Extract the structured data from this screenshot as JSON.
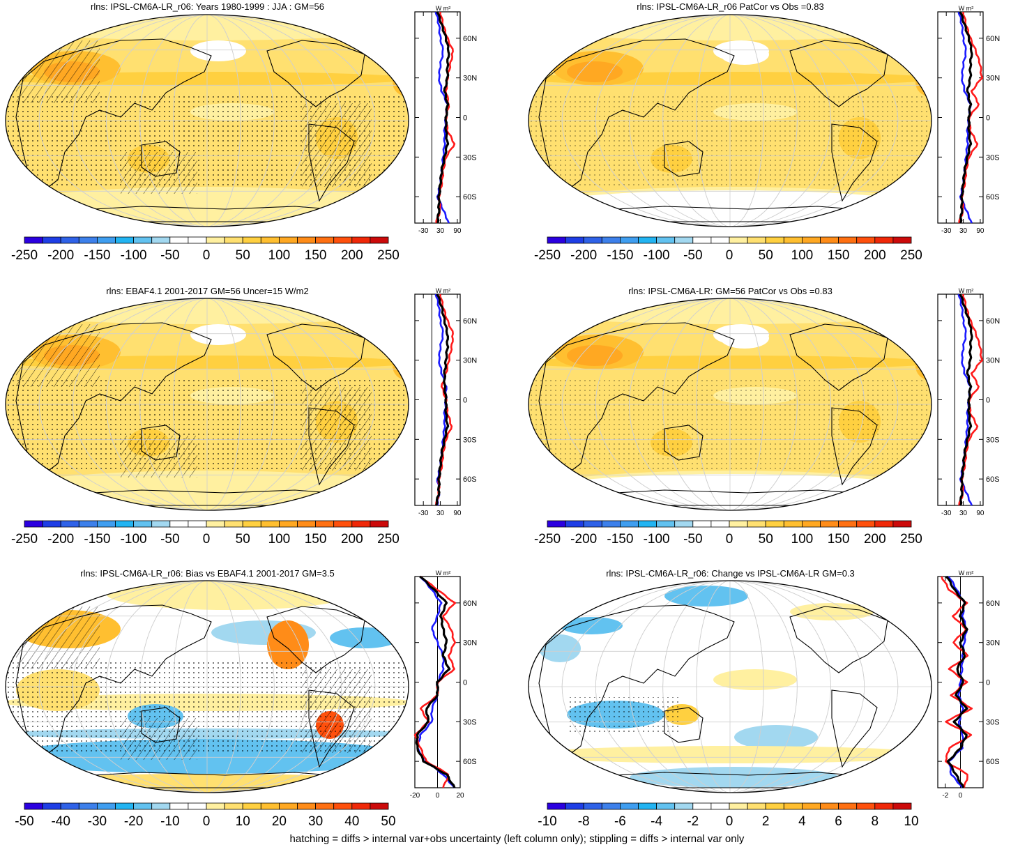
{
  "colors": {
    "series_blue": "#1a1aff",
    "series_red": "#ff1a1a",
    "series_black": "#000000",
    "map_outline": "#000000",
    "grid": "#cfcfcf"
  },
  "colorbars": {
    "rad": {
      "labels": [
        "-250",
        "-200",
        "-150",
        "-100",
        "-50",
        "0",
        "50",
        "100",
        "150",
        "200",
        "250"
      ],
      "colors": [
        "#2b00e0",
        "#1f3ee6",
        "#2f62e8",
        "#3d80eb",
        "#3f9ef0",
        "#22b4f2",
        "#62c2f0",
        "#a2d8f0",
        "#ffffff",
        "#ffffff",
        "#fff0a0",
        "#ffe070",
        "#ffd040",
        "#ffbf30",
        "#ffa822",
        "#ff8c18",
        "#ff7012",
        "#ff500c",
        "#f02808",
        "#cc0a0a"
      ]
    },
    "bias": {
      "labels": [
        "-50",
        "-40",
        "-30",
        "-20",
        "-10",
        "0",
        "10",
        "20",
        "30",
        "40",
        "50"
      ],
      "colors": [
        "#2b00e0",
        "#1f3ee6",
        "#2f62e8",
        "#3d80eb",
        "#3f9ef0",
        "#22b4f2",
        "#62c2f0",
        "#a2d8f0",
        "#ffffff",
        "#ffffff",
        "#fff0a0",
        "#ffe070",
        "#ffd040",
        "#ffbf30",
        "#ffa822",
        "#ff8c18",
        "#ff7012",
        "#ff500c",
        "#f02808",
        "#cc0a0a"
      ]
    },
    "change": {
      "labels": [
        "-10",
        "-8",
        "-6",
        "-4",
        "-2",
        "0",
        "2",
        "4",
        "6",
        "8",
        "10"
      ],
      "colors": [
        "#2b00e0",
        "#1f3ee6",
        "#2f62e8",
        "#3d80eb",
        "#3f9ef0",
        "#22b4f2",
        "#62c2f0",
        "#a2d8f0",
        "#ffffff",
        "#ffffff",
        "#fff0a0",
        "#ffe070",
        "#ffd040",
        "#ffbf30",
        "#ffa822",
        "#ff8c18",
        "#ff7012",
        "#ff500c",
        "#f02808",
        "#cc0a0a"
      ]
    }
  },
  "chart_data": [
    {
      "type": "heatmap",
      "title": "rlns: IPSL-CM6A-LR_r06: Years 1980-1999 : JJA : GM=56",
      "colorbar_ticks": [
        -250,
        -200,
        -150,
        -100,
        -50,
        0,
        50,
        100,
        150,
        200,
        250
      ],
      "zonal_mean": {
        "unit": "W m²",
        "xticks": [
          -30,
          30,
          90
        ],
        "xlim": [
          -60,
          100
        ],
        "yticks": [
          "60N",
          "30N",
          "0",
          "30S",
          "60S"
        ],
        "lat": [
          80,
          70,
          60,
          50,
          40,
          30,
          20,
          10,
          0,
          -10,
          -20,
          -30,
          -40,
          -50,
          -60,
          -70,
          -80
        ],
        "series": [
          {
            "color": "blue",
            "values": [
              15,
              25,
              30,
              40,
              30,
              25,
              35,
              55,
              50,
              45,
              45,
              40,
              35,
              30,
              20,
              40,
              60
            ]
          },
          {
            "color": "red",
            "values": [
              30,
              40,
              55,
              75,
              65,
              55,
              50,
              60,
              50,
              55,
              80,
              50,
              40,
              35,
              25,
              30,
              15
            ]
          },
          {
            "color": "black",
            "values": [
              20,
              35,
              50,
              60,
              55,
              55,
              45,
              55,
              50,
              50,
              55,
              45,
              35,
              30,
              25,
              25,
              20
            ]
          }
        ]
      }
    },
    {
      "type": "heatmap",
      "title": "rlns: IPSL-CM6A-LR_r06 PatCor vs Obs =0.83",
      "colorbar_ticks": [
        -250,
        -200,
        -150,
        -100,
        -50,
        0,
        50,
        100,
        150,
        200,
        250
      ],
      "zonal_mean": {
        "unit": "W m²",
        "xticks": [
          -30,
          30,
          90
        ],
        "xlim": [
          -60,
          100
        ],
        "yticks": [
          "60N",
          "30N",
          "0",
          "30S",
          "60S"
        ],
        "lat": [
          80,
          70,
          60,
          50,
          40,
          30,
          20,
          10,
          0,
          -10,
          -20,
          -30,
          -40,
          -50,
          -60,
          -70,
          -80
        ],
        "series": [
          {
            "color": "blue",
            "values": [
              15,
              25,
              30,
              40,
              30,
              25,
              35,
              55,
              50,
              45,
              45,
              40,
              35,
              30,
              20,
              40,
              60
            ]
          },
          {
            "color": "red",
            "values": [
              30,
              40,
              55,
              75,
              90,
              95,
              60,
              85,
              50,
              55,
              80,
              50,
              40,
              35,
              25,
              30,
              15
            ]
          },
          {
            "color": "black",
            "values": [
              20,
              35,
              50,
              60,
              55,
              55,
              45,
              55,
              50,
              50,
              55,
              45,
              35,
              30,
              25,
              25,
              20
            ]
          }
        ]
      }
    },
    {
      "type": "heatmap",
      "title": "rlns: EBAF4.1 2001-2017 GM=56 Uncer=15 W/m2",
      "colorbar_ticks": [
        -250,
        -200,
        -150,
        -100,
        -50,
        0,
        50,
        100,
        150,
        200,
        250
      ],
      "zonal_mean": {
        "unit": "W m²",
        "xticks": [
          -30,
          30,
          90
        ],
        "xlim": [
          -60,
          100
        ],
        "yticks": [
          "60N",
          "30N",
          "0",
          "30S",
          "60S"
        ],
        "lat": [
          80,
          70,
          60,
          50,
          40,
          30,
          20,
          10,
          0,
          -10,
          -20,
          -30,
          -40,
          -50,
          -60,
          -70,
          -80
        ],
        "series": [
          {
            "color": "blue",
            "values": [
              15,
              25,
              30,
              40,
              30,
              25,
              35,
              50,
              50,
              45,
              45,
              40,
              35,
              30,
              20,
              25,
              20
            ]
          },
          {
            "color": "red",
            "values": [
              30,
              40,
              55,
              75,
              70,
              60,
              50,
              35,
              50,
              55,
              70,
              50,
              40,
              35,
              25,
              25,
              15
            ]
          },
          {
            "color": "black",
            "values": [
              20,
              35,
              45,
              55,
              55,
              50,
              45,
              45,
              50,
              50,
              55,
              45,
              35,
              30,
              25,
              25,
              15
            ]
          }
        ]
      }
    },
    {
      "type": "heatmap",
      "title": "rlns: IPSL-CM6A-LR: GM=56 PatCor vs Obs =0.83",
      "colorbar_ticks": [
        -250,
        -200,
        -150,
        -100,
        -50,
        0,
        50,
        100,
        150,
        200,
        250
      ],
      "zonal_mean": {
        "unit": "W m²",
        "xticks": [
          -30,
          30,
          90
        ],
        "xlim": [
          -60,
          100
        ],
        "yticks": [
          "60N",
          "30N",
          "0",
          "30S",
          "60S"
        ],
        "lat": [
          80,
          70,
          60,
          50,
          40,
          30,
          20,
          10,
          0,
          -10,
          -20,
          -30,
          -40,
          -50,
          -60,
          -70,
          -80
        ],
        "series": [
          {
            "color": "blue",
            "values": [
              15,
              25,
              30,
              40,
              30,
              25,
              35,
              55,
              50,
              45,
              45,
              40,
              35,
              30,
              20,
              40,
              60
            ]
          },
          {
            "color": "red",
            "values": [
              30,
              40,
              55,
              75,
              90,
              95,
              60,
              85,
              50,
              55,
              80,
              50,
              40,
              35,
              25,
              30,
              15
            ]
          },
          {
            "color": "black",
            "values": [
              20,
              35,
              50,
              60,
              55,
              55,
              45,
              55,
              50,
              50,
              55,
              45,
              35,
              30,
              25,
              25,
              20
            ]
          }
        ]
      }
    },
    {
      "type": "heatmap",
      "title": "rlns: IPSL-CM6A-LR_r06: Bias vs EBAF4.1 2001-2017 GM=3.5",
      "colorbar_ticks": [
        -50,
        -40,
        -30,
        -20,
        -10,
        0,
        10,
        20,
        30,
        40,
        50
      ],
      "zonal_mean": {
        "unit": "W m²",
        "xticks": [
          -20,
          0,
          20
        ],
        "xlim": [
          -20,
          20
        ],
        "yticks": [
          "60N",
          "30N",
          "0",
          "30S",
          "60S"
        ],
        "lat": [
          80,
          70,
          60,
          50,
          40,
          30,
          20,
          10,
          0,
          -10,
          -20,
          -30,
          -40,
          -50,
          -60,
          -70,
          -80
        ],
        "series": [
          {
            "color": "blue",
            "values": [
              -15,
              -5,
              3,
              0,
              -5,
              0,
              5,
              5,
              0,
              0,
              -5,
              -5,
              -15,
              -18,
              -10,
              5,
              15
            ]
          },
          {
            "color": "red",
            "values": [
              -15,
              0,
              15,
              5,
              12,
              15,
              10,
              15,
              0,
              0,
              -15,
              -8,
              -20,
              -15,
              -10,
              10,
              5
            ]
          },
          {
            "color": "black",
            "values": [
              -15,
              -3,
              8,
              3,
              5,
              8,
              5,
              10,
              0,
              0,
              -10,
              -8,
              -18,
              -18,
              -12,
              8,
              15
            ]
          }
        ]
      }
    },
    {
      "type": "heatmap",
      "title": "rlns: IPSL-CM6A-LR_r06: Change vs IPSL-CM6A-LR GM=0.3",
      "colorbar_ticks": [
        -10,
        -8,
        -6,
        -4,
        -2,
        0,
        2,
        4,
        6,
        8,
        10
      ],
      "zonal_mean": {
        "unit": "W m²",
        "xticks": [
          -2.0,
          0.0
        ],
        "xlim": [
          -3,
          3
        ],
        "yticks": [
          "60N",
          "30N",
          "0",
          "30S",
          "60S"
        ],
        "lat": [
          80,
          70,
          60,
          50,
          40,
          30,
          20,
          10,
          0,
          -10,
          -20,
          -30,
          -40,
          -50,
          -60,
          -70,
          -80
        ],
        "series": [
          {
            "color": "blue",
            "values": [
              -1.5,
              -0.5,
              0.5,
              0.3,
              0.8,
              0.5,
              0.3,
              0.2,
              0,
              -0.2,
              0.3,
              -0.2,
              0.3,
              0.2,
              -1.5,
              -1.2,
              0.3
            ]
          },
          {
            "color": "red",
            "values": [
              -2.5,
              -1.5,
              0.8,
              -1.0,
              0.8,
              -1.0,
              1.0,
              -1.5,
              0.8,
              -1.2,
              1.5,
              -2.0,
              1.5,
              -1.5,
              -2.0,
              1.0,
              0.5
            ]
          },
          {
            "color": "black",
            "values": [
              -1.8,
              -0.8,
              0.6,
              0.0,
              0.8,
              0.0,
              0.6,
              -0.5,
              0.4,
              -0.6,
              0.8,
              -0.8,
              0.8,
              0.0,
              -1.6,
              -0.6,
              0.4
            ]
          }
        ]
      }
    }
  ],
  "footer": "hatching = diffs > internal var+obs uncertainty (left column only); stippling = diffs > internal var only"
}
